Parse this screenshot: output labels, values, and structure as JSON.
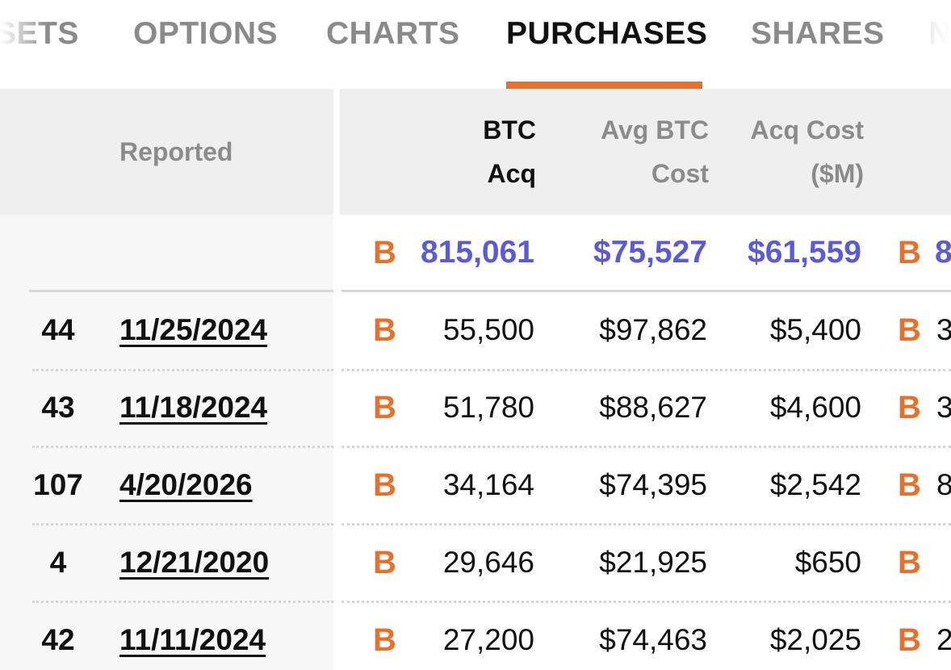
{
  "tabs": [
    {
      "label": "SETS"
    },
    {
      "label": "OPTIONS"
    },
    {
      "label": "CHARTS"
    },
    {
      "label": "PURCHASES"
    },
    {
      "label": "SHARES"
    },
    {
      "label": "N"
    }
  ],
  "active_tab": "PURCHASES",
  "colors": {
    "accent": "#e8702a",
    "total": "#5b5bd6"
  },
  "table": {
    "headers": {
      "reported": "Reported",
      "btc_acq": [
        "BTC",
        "Acq"
      ],
      "avg_btc_cost": [
        "Avg BTC",
        "Cost"
      ],
      "acq_cost": [
        "Acq Cost",
        "($M)"
      ]
    },
    "btc_symbol": "B",
    "totals": {
      "btc_acq": "815,061",
      "avg_btc_cost": "$75,527",
      "acq_cost": "$61,559",
      "next_partial": "8"
    },
    "rows": [
      {
        "num": "44",
        "date": "11/25/2024",
        "btc_acq": "55,500",
        "avg_btc_cost": "$97,862",
        "acq_cost": "$5,400",
        "next_partial": "3"
      },
      {
        "num": "43",
        "date": "11/18/2024",
        "btc_acq": "51,780",
        "avg_btc_cost": "$88,627",
        "acq_cost": "$4,600",
        "next_partial": "3"
      },
      {
        "num": "107",
        "date": "4/20/2026",
        "btc_acq": "34,164",
        "avg_btc_cost": "$74,395",
        "acq_cost": "$2,542",
        "next_partial": "8"
      },
      {
        "num": "4",
        "date": "12/21/2020",
        "btc_acq": "29,646",
        "avg_btc_cost": "$21,925",
        "acq_cost": "$650",
        "next_partial": ""
      },
      {
        "num": "42",
        "date": "11/11/2024",
        "btc_acq": "27,200",
        "avg_btc_cost": "$74,463",
        "acq_cost": "$2,025",
        "next_partial": "2"
      }
    ]
  }
}
